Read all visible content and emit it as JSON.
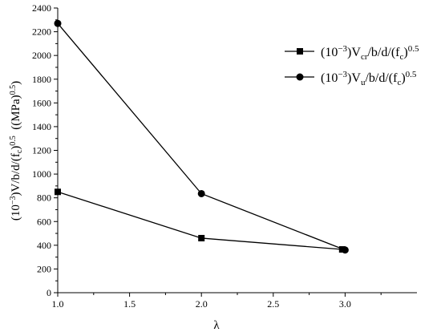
{
  "chart_data": {
    "type": "line",
    "title": "",
    "xlabel": "λ",
    "ylabel": {
      "base": "(10",
      "exp1": "−3",
      "mid": ")V/b/d/(f",
      "sub": "c",
      "mid2": ")",
      "exp2": "0.5",
      "unit": "  ((MPa)",
      "exp3": "0.5",
      "end": ")"
    },
    "xlim": [
      1.0,
      3.5
    ],
    "ylim": [
      0,
      2400
    ],
    "x_ticks": [
      "1.0",
      "1.5",
      "2.0",
      "2.5",
      "3.0"
    ],
    "y_ticks": [
      "0",
      "200",
      "400",
      "600",
      "800",
      "1000",
      "1200",
      "1400",
      "1600",
      "1800",
      "2000",
      "2200",
      "2400"
    ],
    "grid": false,
    "legend_position": "top-right",
    "series": [
      {
        "name": {
          "pre": "(10",
          "exp": "−3",
          "mid": ")V",
          "sub": "cr",
          "post": "/b/d/(f",
          "sub2": "c",
          "end": ")",
          "exp2": "0.5"
        },
        "marker": "square",
        "x": [
          1.0,
          2.0,
          2.98
        ],
        "y": [
          850,
          460,
          365
        ]
      },
      {
        "name": {
          "pre": "(10",
          "exp": "−3",
          "mid": ")V",
          "sub": "u",
          "post": "/b/d/(f",
          "sub2": "c",
          "end": ")",
          "exp2": "0.5"
        },
        "marker": "circle",
        "x": [
          1.0,
          2.0,
          3.0
        ],
        "y": [
          2270,
          835,
          360
        ]
      }
    ]
  }
}
